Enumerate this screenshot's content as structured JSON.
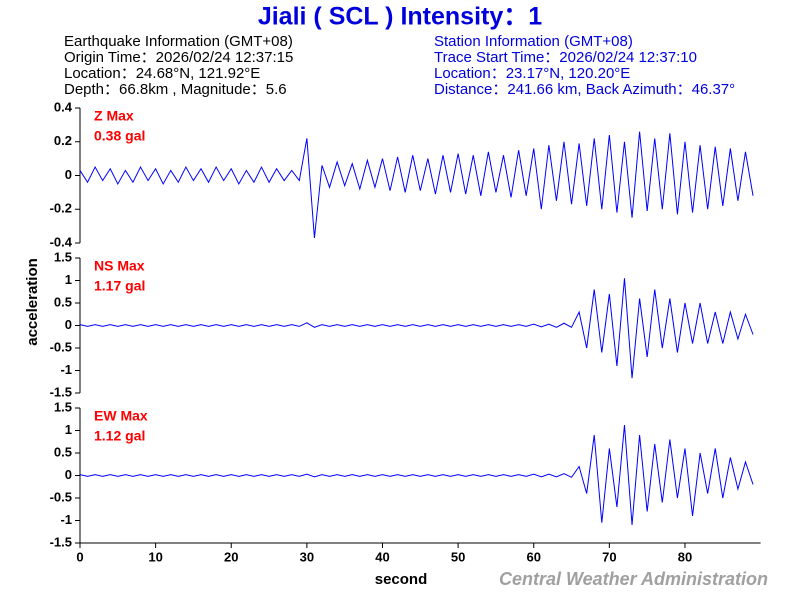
{
  "title": "Jiali  ( SCL )  Intensity：1",
  "earthquake_info": [
    "Earthquake Information  (GMT+08)",
    "Origin Time：2026/02/24 12:37:15",
    "Location：24.68°N, 121.92°E",
    "Depth：66.8km , Magnitude：5.6"
  ],
  "station_info": [
    "Station Information  (GMT+08)",
    "Trace Start Time：2026/02/24 12:37:10",
    "Location：23.17°N, 120.20°E",
    "Distance：241.66 km, Back Azimuth：46.37°"
  ],
  "y_label": "acceleration",
  "credit": "Central Weather Administration",
  "chart_data": [
    {
      "type": "line",
      "label": "Z Max",
      "max_label": "0.38 gal",
      "color": "#0000ff",
      "label_color": "#ff0000",
      "xlim": [
        0,
        90
      ],
      "ylim": [
        -0.4,
        0.4
      ],
      "yticks": [
        0.4,
        0.2,
        0,
        -0.2,
        -0.4
      ],
      "x": [
        0,
        1,
        2,
        3,
        4,
        5,
        6,
        7,
        8,
        9,
        10,
        11,
        12,
        13,
        14,
        15,
        16,
        17,
        18,
        19,
        20,
        21,
        22,
        23,
        24,
        25,
        26,
        27,
        28,
        29,
        30,
        31,
        32,
        33,
        34,
        35,
        36,
        37,
        38,
        39,
        40,
        41,
        42,
        43,
        44,
        45,
        46,
        47,
        48,
        49,
        50,
        51,
        52,
        53,
        54,
        55,
        56,
        57,
        58,
        59,
        60,
        61,
        62,
        63,
        64,
        65,
        66,
        67,
        68,
        69,
        70,
        71,
        72,
        73,
        74,
        75,
        76,
        77,
        78,
        79,
        80,
        81,
        82,
        83,
        84,
        85,
        86,
        87,
        88,
        89
      ],
      "values": [
        0.03,
        -0.04,
        0.05,
        -0.03,
        0.04,
        -0.05,
        0.03,
        -0.04,
        0.05,
        -0.03,
        0.04,
        -0.05,
        0.03,
        -0.04,
        0.05,
        -0.03,
        0.04,
        -0.04,
        0.05,
        -0.03,
        0.04,
        -0.05,
        0.03,
        -0.04,
        0.05,
        -0.04,
        0.04,
        -0.03,
        0.03,
        -0.03,
        0.22,
        -0.37,
        0.06,
        -0.07,
        0.08,
        -0.06,
        0.07,
        -0.08,
        0.09,
        -0.07,
        0.1,
        -0.09,
        0.11,
        -0.1,
        0.12,
        -0.09,
        0.1,
        -0.11,
        0.12,
        -0.1,
        0.13,
        -0.11,
        0.12,
        -0.12,
        0.14,
        -0.1,
        0.12,
        -0.13,
        0.15,
        -0.12,
        0.16,
        -0.2,
        0.18,
        -0.15,
        0.2,
        -0.17,
        0.19,
        -0.18,
        0.22,
        -0.2,
        0.24,
        -0.22,
        0.2,
        -0.25,
        0.26,
        -0.21,
        0.22,
        -0.2,
        0.25,
        -0.23,
        0.2,
        -0.22,
        0.18,
        -0.2,
        0.17,
        -0.18,
        0.16,
        -0.15,
        0.14,
        -0.12
      ]
    },
    {
      "type": "line",
      "label": "NS Max",
      "max_label": "1.17 gal",
      "color": "#0000ff",
      "label_color": "#ff0000",
      "xlim": [
        0,
        90
      ],
      "ylim": [
        -1.5,
        1.5
      ],
      "yticks": [
        1.5,
        1,
        0.5,
        0,
        -0.5,
        -1,
        -1.5
      ],
      "x": [
        0,
        1,
        2,
        3,
        4,
        5,
        6,
        7,
        8,
        9,
        10,
        11,
        12,
        13,
        14,
        15,
        16,
        17,
        18,
        19,
        20,
        21,
        22,
        23,
        24,
        25,
        26,
        27,
        28,
        29,
        30,
        31,
        32,
        33,
        34,
        35,
        36,
        37,
        38,
        39,
        40,
        41,
        42,
        43,
        44,
        45,
        46,
        47,
        48,
        49,
        50,
        51,
        52,
        53,
        54,
        55,
        56,
        57,
        58,
        59,
        60,
        61,
        62,
        63,
        64,
        65,
        66,
        67,
        68,
        69,
        70,
        71,
        72,
        73,
        74,
        75,
        76,
        77,
        78,
        79,
        80,
        81,
        82,
        83,
        84,
        85,
        86,
        87,
        88,
        89
      ],
      "values": [
        0.02,
        -0.02,
        0.02,
        -0.02,
        0.02,
        -0.02,
        0.02,
        -0.02,
        0.02,
        -0.02,
        0.02,
        -0.02,
        0.02,
        -0.02,
        0.02,
        -0.02,
        0.02,
        -0.02,
        0.02,
        -0.02,
        0.02,
        -0.02,
        0.02,
        -0.02,
        0.02,
        -0.02,
        0.02,
        -0.02,
        0.02,
        -0.02,
        0.06,
        -0.04,
        0.02,
        -0.02,
        0.02,
        -0.02,
        0.02,
        -0.02,
        0.02,
        -0.02,
        0.02,
        -0.02,
        0.02,
        -0.02,
        0.02,
        -0.02,
        0.02,
        -0.02,
        0.02,
        -0.02,
        0.02,
        -0.02,
        0.02,
        -0.02,
        0.02,
        -0.02,
        0.02,
        -0.02,
        0.02,
        -0.02,
        0.03,
        -0.03,
        0.03,
        -0.04,
        0.05,
        -0.04,
        0.3,
        -0.5,
        0.8,
        -0.6,
        0.7,
        -0.9,
        1.05,
        -1.17,
        0.6,
        -0.7,
        0.8,
        -0.5,
        0.6,
        -0.6,
        0.5,
        -0.4,
        0.5,
        -0.4,
        0.3,
        -0.4,
        0.3,
        -0.3,
        0.25,
        -0.2
      ]
    },
    {
      "type": "line",
      "label": "EW Max",
      "max_label": "1.12 gal",
      "color": "#0000ff",
      "label_color": "#ff0000",
      "xlim": [
        0,
        90
      ],
      "ylim": [
        -1.5,
        1.5
      ],
      "yticks": [
        1.5,
        1,
        0.5,
        0,
        -0.5,
        -1,
        -1.5
      ],
      "xticks": [
        0,
        10,
        20,
        30,
        40,
        50,
        60,
        70,
        80
      ],
      "x_label": "second",
      "x": [
        0,
        1,
        2,
        3,
        4,
        5,
        6,
        7,
        8,
        9,
        10,
        11,
        12,
        13,
        14,
        15,
        16,
        17,
        18,
        19,
        20,
        21,
        22,
        23,
        24,
        25,
        26,
        27,
        28,
        29,
        30,
        31,
        32,
        33,
        34,
        35,
        36,
        37,
        38,
        39,
        40,
        41,
        42,
        43,
        44,
        45,
        46,
        47,
        48,
        49,
        50,
        51,
        52,
        53,
        54,
        55,
        56,
        57,
        58,
        59,
        60,
        61,
        62,
        63,
        64,
        65,
        66,
        67,
        68,
        69,
        70,
        71,
        72,
        73,
        74,
        75,
        76,
        77,
        78,
        79,
        80,
        81,
        82,
        83,
        84,
        85,
        86,
        87,
        88,
        89
      ],
      "values": [
        0.02,
        -0.02,
        0.02,
        -0.02,
        0.02,
        -0.02,
        0.02,
        -0.02,
        0.02,
        -0.02,
        0.02,
        -0.02,
        0.02,
        -0.02,
        0.02,
        -0.02,
        0.02,
        -0.02,
        0.02,
        -0.02,
        0.02,
        -0.02,
        0.02,
        -0.02,
        0.02,
        -0.02,
        0.02,
        -0.02,
        0.02,
        -0.02,
        0.03,
        -0.03,
        0.02,
        -0.02,
        0.02,
        -0.02,
        0.02,
        -0.02,
        0.02,
        -0.02,
        0.02,
        -0.02,
        0.02,
        -0.02,
        0.02,
        -0.02,
        0.02,
        -0.02,
        0.02,
        -0.02,
        0.02,
        -0.02,
        0.02,
        -0.02,
        0.02,
        -0.02,
        0.02,
        -0.02,
        0.02,
        -0.02,
        0.03,
        -0.03,
        0.03,
        -0.03,
        0.04,
        -0.04,
        0.2,
        -0.4,
        0.9,
        -1.05,
        0.6,
        -0.7,
        1.12,
        -1.1,
        0.9,
        -0.8,
        0.7,
        -0.6,
        0.8,
        -0.5,
        0.6,
        -0.9,
        0.5,
        -0.4,
        0.6,
        -0.5,
        0.4,
        -0.3,
        0.3,
        -0.2
      ]
    }
  ]
}
